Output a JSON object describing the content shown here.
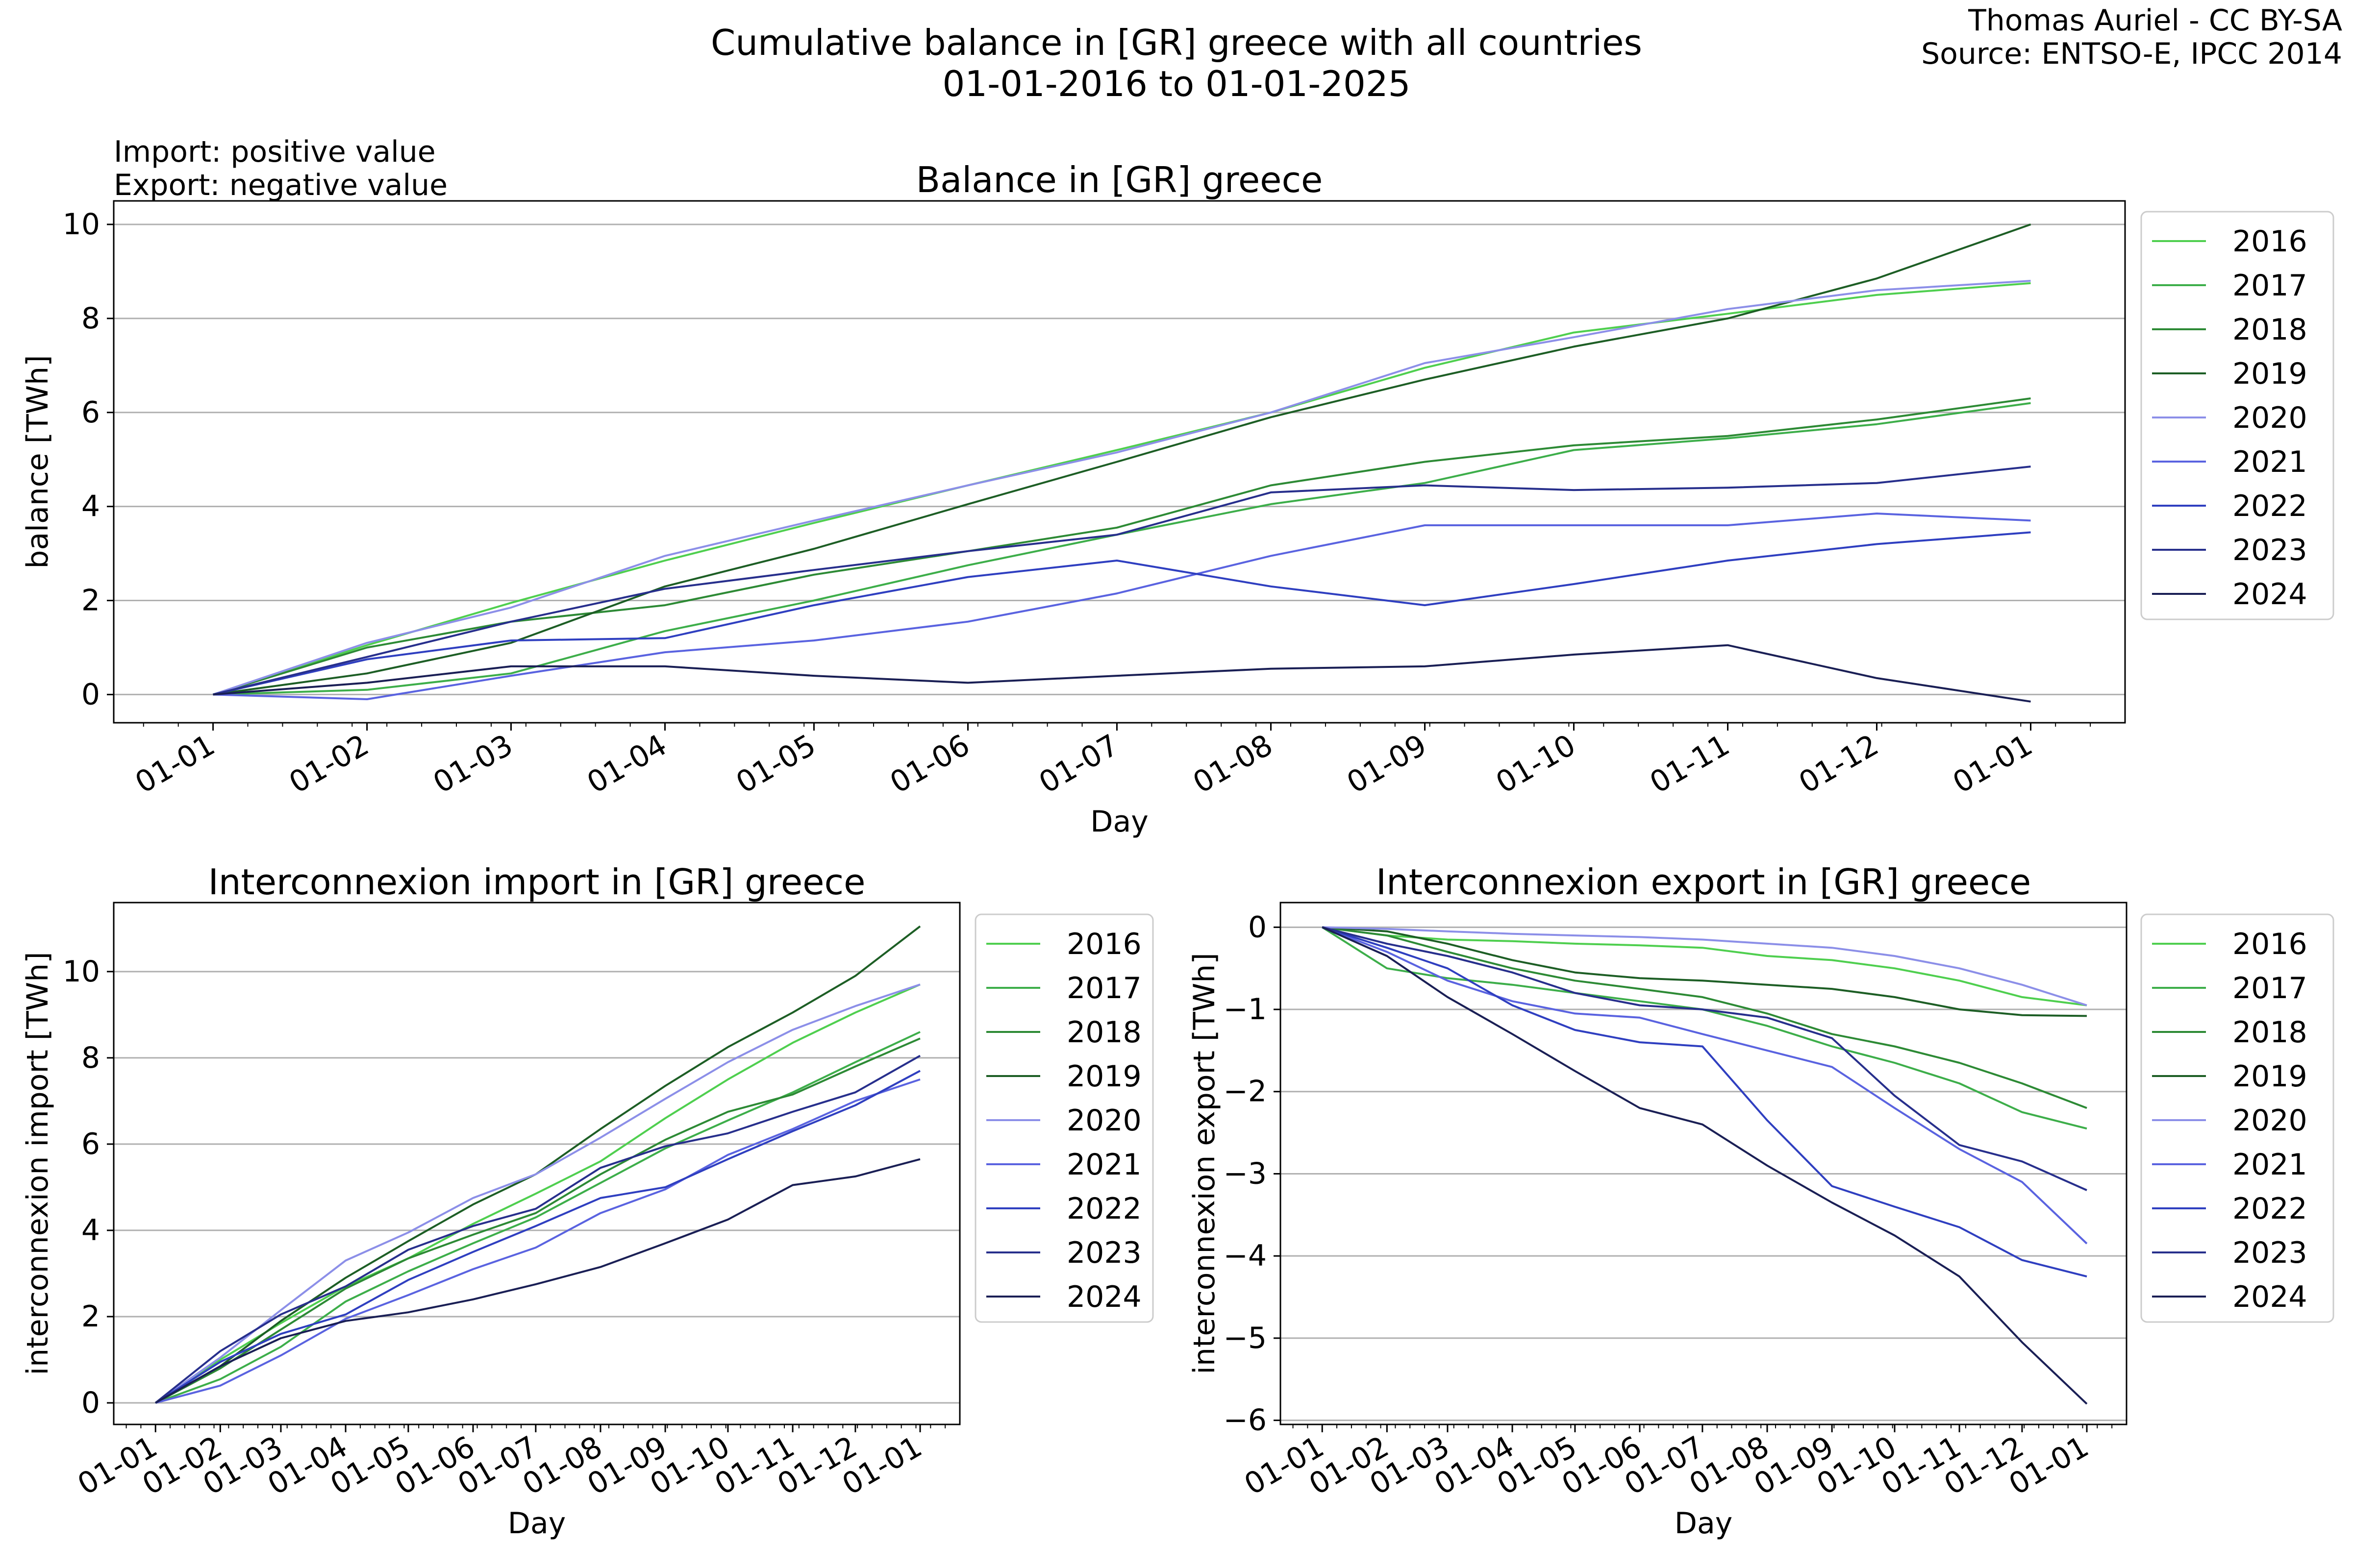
{
  "header": {
    "title_line1": "Cumulative balance in [GR] greece with all countries",
    "title_line2": "01-01-2016 to 01-01-2025",
    "credit_line1": "Thomas Auriel - CC BY-SA",
    "credit_line2": "Source: ENTSO-E, IPCC 2014",
    "note_line1": "Import: positive value",
    "note_line2": "Export: negative value"
  },
  "colors": {
    "2016": "#4fcf4f",
    "2017": "#3dae4a",
    "2018": "#2d8a35",
    "2019": "#1d5e25",
    "2020": "#8c8fe8",
    "2021": "#5a63e0",
    "2022": "#2f3fc0",
    "2023": "#272f8c",
    "2024": "#1a1f55",
    "grid": "#b0b0b0"
  },
  "chart_data": [
    {
      "type": "line",
      "id": "balance",
      "title": "Balance in [GR] greece",
      "xlabel": "Day",
      "ylabel": "balance [TWh]",
      "xlim": [
        -20,
        385
      ],
      "ylim": [
        -0.6,
        10.5
      ],
      "yticks": [
        0,
        2,
        4,
        6,
        8,
        10
      ],
      "xticks": [
        0,
        31,
        60,
        91,
        121,
        152,
        182,
        213,
        244,
        274,
        305,
        335,
        366
      ],
      "xticklabels": [
        "01-01",
        "01-02",
        "01-03",
        "01-04",
        "01-05",
        "01-06",
        "01-07",
        "01-08",
        "01-09",
        "01-10",
        "01-11",
        "01-12",
        "01-01"
      ],
      "grid": "y",
      "legend": "outside-right",
      "series": [
        {
          "name": "2016",
          "x": [
            0,
            31,
            60,
            91,
            121,
            152,
            182,
            213,
            244,
            274,
            305,
            335,
            366
          ],
          "y": [
            0,
            1.05,
            1.95,
            2.85,
            3.65,
            4.45,
            5.2,
            6.0,
            6.95,
            7.7,
            8.1,
            8.5,
            8.75
          ]
        },
        {
          "name": "2017",
          "x": [
            0,
            31,
            60,
            91,
            121,
            152,
            182,
            213,
            244,
            274,
            305,
            335,
            366
          ],
          "y": [
            0,
            0.1,
            0.45,
            1.35,
            2.0,
            2.75,
            3.4,
            4.05,
            4.5,
            5.2,
            5.45,
            5.75,
            6.2
          ]
        },
        {
          "name": "2018",
          "x": [
            0,
            31,
            60,
            91,
            121,
            152,
            182,
            213,
            244,
            274,
            305,
            335,
            366
          ],
          "y": [
            0,
            1.0,
            1.55,
            1.9,
            2.55,
            3.05,
            3.55,
            4.45,
            4.95,
            5.3,
            5.5,
            5.85,
            6.3
          ]
        },
        {
          "name": "2019",
          "x": [
            0,
            31,
            60,
            91,
            121,
            152,
            182,
            213,
            244,
            274,
            305,
            335,
            366
          ],
          "y": [
            0,
            0.45,
            1.1,
            2.3,
            3.1,
            4.05,
            4.95,
            5.9,
            6.7,
            7.4,
            8.0,
            8.85,
            10.0
          ]
        },
        {
          "name": "2020",
          "x": [
            0,
            31,
            60,
            91,
            121,
            152,
            182,
            213,
            244,
            274,
            305,
            335,
            366
          ],
          "y": [
            0,
            1.1,
            1.85,
            2.95,
            3.7,
            4.45,
            5.15,
            6.0,
            7.05,
            7.6,
            8.2,
            8.6,
            8.8
          ]
        },
        {
          "name": "2021",
          "x": [
            0,
            31,
            60,
            91,
            121,
            152,
            182,
            213,
            244,
            274,
            305,
            335,
            366
          ],
          "y": [
            0,
            -0.1,
            0.4,
            0.9,
            1.15,
            1.55,
            2.15,
            2.95,
            3.6,
            3.6,
            3.6,
            3.85,
            3.7
          ]
        },
        {
          "name": "2022",
          "x": [
            0,
            31,
            60,
            91,
            121,
            152,
            182,
            213,
            244,
            274,
            305,
            335,
            366
          ],
          "y": [
            0,
            0.75,
            1.15,
            1.2,
            1.9,
            2.5,
            2.85,
            2.3,
            1.9,
            2.35,
            2.85,
            3.2,
            3.45
          ]
        },
        {
          "name": "2023",
          "x": [
            0,
            31,
            60,
            91,
            121,
            152,
            182,
            213,
            244,
            274,
            305,
            335,
            366
          ],
          "y": [
            0,
            0.8,
            1.55,
            2.25,
            2.65,
            3.05,
            3.4,
            4.3,
            4.45,
            4.35,
            4.4,
            4.5,
            4.85
          ]
        },
        {
          "name": "2024",
          "x": [
            0,
            31,
            60,
            91,
            121,
            152,
            182,
            213,
            244,
            274,
            305,
            335,
            366
          ],
          "y": [
            0,
            0.25,
            0.6,
            0.6,
            0.4,
            0.25,
            0.4,
            0.55,
            0.6,
            0.85,
            1.05,
            0.35,
            -0.15
          ]
        }
      ]
    },
    {
      "type": "line",
      "id": "import",
      "title": "Interconnexion import in [GR] greece",
      "xlabel": "Day",
      "ylabel": "interconnexion import [TWh]",
      "xlim": [
        -20,
        385
      ],
      "ylim": [
        -0.5,
        11.6
      ],
      "yticks": [
        0,
        2,
        4,
        6,
        8,
        10
      ],
      "xticks": [
        0,
        31,
        60,
        91,
        121,
        152,
        182,
        213,
        244,
        274,
        305,
        335,
        366
      ],
      "xticklabels": [
        "01-01",
        "01-02",
        "01-03",
        "01-04",
        "01-05",
        "01-06",
        "01-07",
        "01-08",
        "01-09",
        "01-10",
        "01-11",
        "01-12",
        "01-01"
      ],
      "grid": "y",
      "legend": "outside-right",
      "series": [
        {
          "name": "2016",
          "x": [
            0,
            31,
            60,
            91,
            121,
            152,
            182,
            213,
            244,
            274,
            305,
            335,
            366
          ],
          "y": [
            0,
            1.0,
            1.85,
            2.7,
            3.35,
            4.15,
            4.85,
            5.6,
            6.6,
            7.5,
            8.35,
            9.05,
            9.7
          ]
        },
        {
          "name": "2017",
          "x": [
            0,
            31,
            60,
            91,
            121,
            152,
            182,
            213,
            244,
            274,
            305,
            335,
            366
          ],
          "y": [
            0,
            0.55,
            1.3,
            2.35,
            3.05,
            3.7,
            4.3,
            5.1,
            5.9,
            6.55,
            7.2,
            7.9,
            8.6
          ]
        },
        {
          "name": "2018",
          "x": [
            0,
            31,
            60,
            91,
            121,
            152,
            182,
            213,
            244,
            274,
            305,
            335,
            366
          ],
          "y": [
            0,
            0.8,
            1.7,
            2.65,
            3.35,
            3.9,
            4.4,
            5.3,
            6.1,
            6.75,
            7.15,
            7.8,
            8.45
          ]
        },
        {
          "name": "2019",
          "x": [
            0,
            31,
            60,
            91,
            121,
            152,
            182,
            213,
            244,
            274,
            305,
            335,
            366
          ],
          "y": [
            0,
            0.85,
            1.9,
            2.9,
            3.75,
            4.6,
            5.3,
            6.35,
            7.35,
            8.25,
            9.05,
            9.9,
            11.05
          ]
        },
        {
          "name": "2020",
          "x": [
            0,
            31,
            60,
            91,
            121,
            152,
            182,
            213,
            244,
            274,
            305,
            335,
            366
          ],
          "y": [
            0,
            1.05,
            2.15,
            3.3,
            3.95,
            4.75,
            5.3,
            6.15,
            7.05,
            7.9,
            8.65,
            9.2,
            9.7
          ]
        },
        {
          "name": "2021",
          "x": [
            0,
            31,
            60,
            91,
            121,
            152,
            182,
            213,
            244,
            274,
            305,
            335,
            366
          ],
          "y": [
            0,
            0.4,
            1.1,
            1.95,
            2.5,
            3.1,
            3.6,
            4.4,
            4.95,
            5.75,
            6.35,
            7.0,
            7.5
          ]
        },
        {
          "name": "2022",
          "x": [
            0,
            31,
            60,
            91,
            121,
            152,
            182,
            213,
            244,
            274,
            305,
            335,
            366
          ],
          "y": [
            0,
            0.95,
            1.6,
            2.05,
            2.85,
            3.5,
            4.1,
            4.75,
            5.0,
            5.65,
            6.3,
            6.9,
            7.7
          ]
        },
        {
          "name": "2023",
          "x": [
            0,
            31,
            60,
            91,
            121,
            152,
            182,
            213,
            244,
            274,
            305,
            335,
            366
          ],
          "y": [
            0,
            1.2,
            2.05,
            2.7,
            3.55,
            4.1,
            4.5,
            5.45,
            5.95,
            6.25,
            6.75,
            7.2,
            8.05
          ]
        },
        {
          "name": "2024",
          "x": [
            0,
            31,
            60,
            91,
            121,
            152,
            182,
            213,
            244,
            274,
            305,
            335,
            366
          ],
          "y": [
            0,
            0.85,
            1.5,
            1.9,
            2.1,
            2.4,
            2.75,
            3.15,
            3.7,
            4.25,
            5.05,
            5.25,
            5.65
          ]
        }
      ]
    },
    {
      "type": "line",
      "id": "export",
      "title": "Interconnexion export in [GR] greece",
      "xlabel": "Day",
      "ylabel": "interconnexion export [TWh]",
      "xlim": [
        -20,
        385
      ],
      "ylim": [
        -6.05,
        0.3
      ],
      "yticks": [
        0,
        -1,
        -2,
        -3,
        -4,
        -5,
        -6
      ],
      "yticklabels": [
        "0",
        "−1",
        "−2",
        "−3",
        "−4",
        "−5",
        "−6"
      ],
      "xticks": [
        0,
        31,
        60,
        91,
        121,
        152,
        182,
        213,
        244,
        274,
        305,
        335,
        366
      ],
      "xticklabels": [
        "01-01",
        "01-02",
        "01-03",
        "01-04",
        "01-05",
        "01-06",
        "01-07",
        "01-08",
        "01-09",
        "01-10",
        "01-11",
        "01-12",
        "01-01"
      ],
      "grid": "y",
      "legend": "outside-right",
      "series": [
        {
          "name": "2016",
          "x": [
            0,
            31,
            60,
            91,
            121,
            152,
            182,
            213,
            244,
            274,
            305,
            335,
            366
          ],
          "y": [
            0,
            -0.1,
            -0.15,
            -0.17,
            -0.2,
            -0.22,
            -0.25,
            -0.35,
            -0.4,
            -0.5,
            -0.65,
            -0.85,
            -0.95
          ]
        },
        {
          "name": "2017",
          "x": [
            0,
            31,
            60,
            91,
            121,
            152,
            182,
            213,
            244,
            274,
            305,
            335,
            366
          ],
          "y": [
            0,
            -0.5,
            -0.62,
            -0.7,
            -0.8,
            -0.9,
            -1.0,
            -1.2,
            -1.45,
            -1.65,
            -1.9,
            -2.25,
            -2.45
          ]
        },
        {
          "name": "2018",
          "x": [
            0,
            31,
            60,
            91,
            121,
            152,
            182,
            213,
            244,
            274,
            305,
            335,
            366
          ],
          "y": [
            0,
            -0.1,
            -0.3,
            -0.5,
            -0.65,
            -0.75,
            -0.85,
            -1.05,
            -1.3,
            -1.45,
            -1.65,
            -1.9,
            -2.2
          ]
        },
        {
          "name": "2019",
          "x": [
            0,
            31,
            60,
            91,
            121,
            152,
            182,
            213,
            244,
            274,
            305,
            335,
            366
          ],
          "y": [
            0,
            -0.05,
            -0.2,
            -0.4,
            -0.55,
            -0.62,
            -0.65,
            -0.7,
            -0.75,
            -0.85,
            -1.0,
            -1.07,
            -1.08
          ]
        },
        {
          "name": "2020",
          "x": [
            0,
            31,
            60,
            91,
            121,
            152,
            182,
            213,
            244,
            274,
            305,
            335,
            366
          ],
          "y": [
            0,
            -0.02,
            -0.05,
            -0.08,
            -0.1,
            -0.12,
            -0.15,
            -0.2,
            -0.25,
            -0.35,
            -0.5,
            -0.7,
            -0.95
          ]
        },
        {
          "name": "2021",
          "x": [
            0,
            31,
            60,
            91,
            121,
            152,
            182,
            213,
            244,
            274,
            305,
            335,
            366
          ],
          "y": [
            0,
            -0.3,
            -0.65,
            -0.9,
            -1.05,
            -1.1,
            -1.3,
            -1.5,
            -1.7,
            -2.2,
            -2.7,
            -3.1,
            -3.85
          ]
        },
        {
          "name": "2022",
          "x": [
            0,
            31,
            60,
            91,
            121,
            152,
            182,
            213,
            244,
            274,
            305,
            335,
            366
          ],
          "y": [
            0,
            -0.25,
            -0.5,
            -0.95,
            -1.25,
            -1.4,
            -1.45,
            -2.35,
            -3.15,
            -3.4,
            -3.65,
            -4.05,
            -4.25
          ]
        },
        {
          "name": "2023",
          "x": [
            0,
            31,
            60,
            91,
            121,
            152,
            182,
            213,
            244,
            274,
            305,
            335,
            366
          ],
          "y": [
            0,
            -0.2,
            -0.35,
            -0.55,
            -0.8,
            -0.95,
            -1.0,
            -1.1,
            -1.35,
            -2.05,
            -2.65,
            -2.85,
            -3.2
          ]
        },
        {
          "name": "2024",
          "x": [
            0,
            31,
            60,
            91,
            121,
            152,
            182,
            213,
            244,
            274,
            305,
            335,
            366
          ],
          "y": [
            0,
            -0.35,
            -0.85,
            -1.3,
            -1.75,
            -2.2,
            -2.4,
            -2.9,
            -3.35,
            -3.75,
            -4.25,
            -5.05,
            -5.8
          ]
        }
      ]
    }
  ]
}
